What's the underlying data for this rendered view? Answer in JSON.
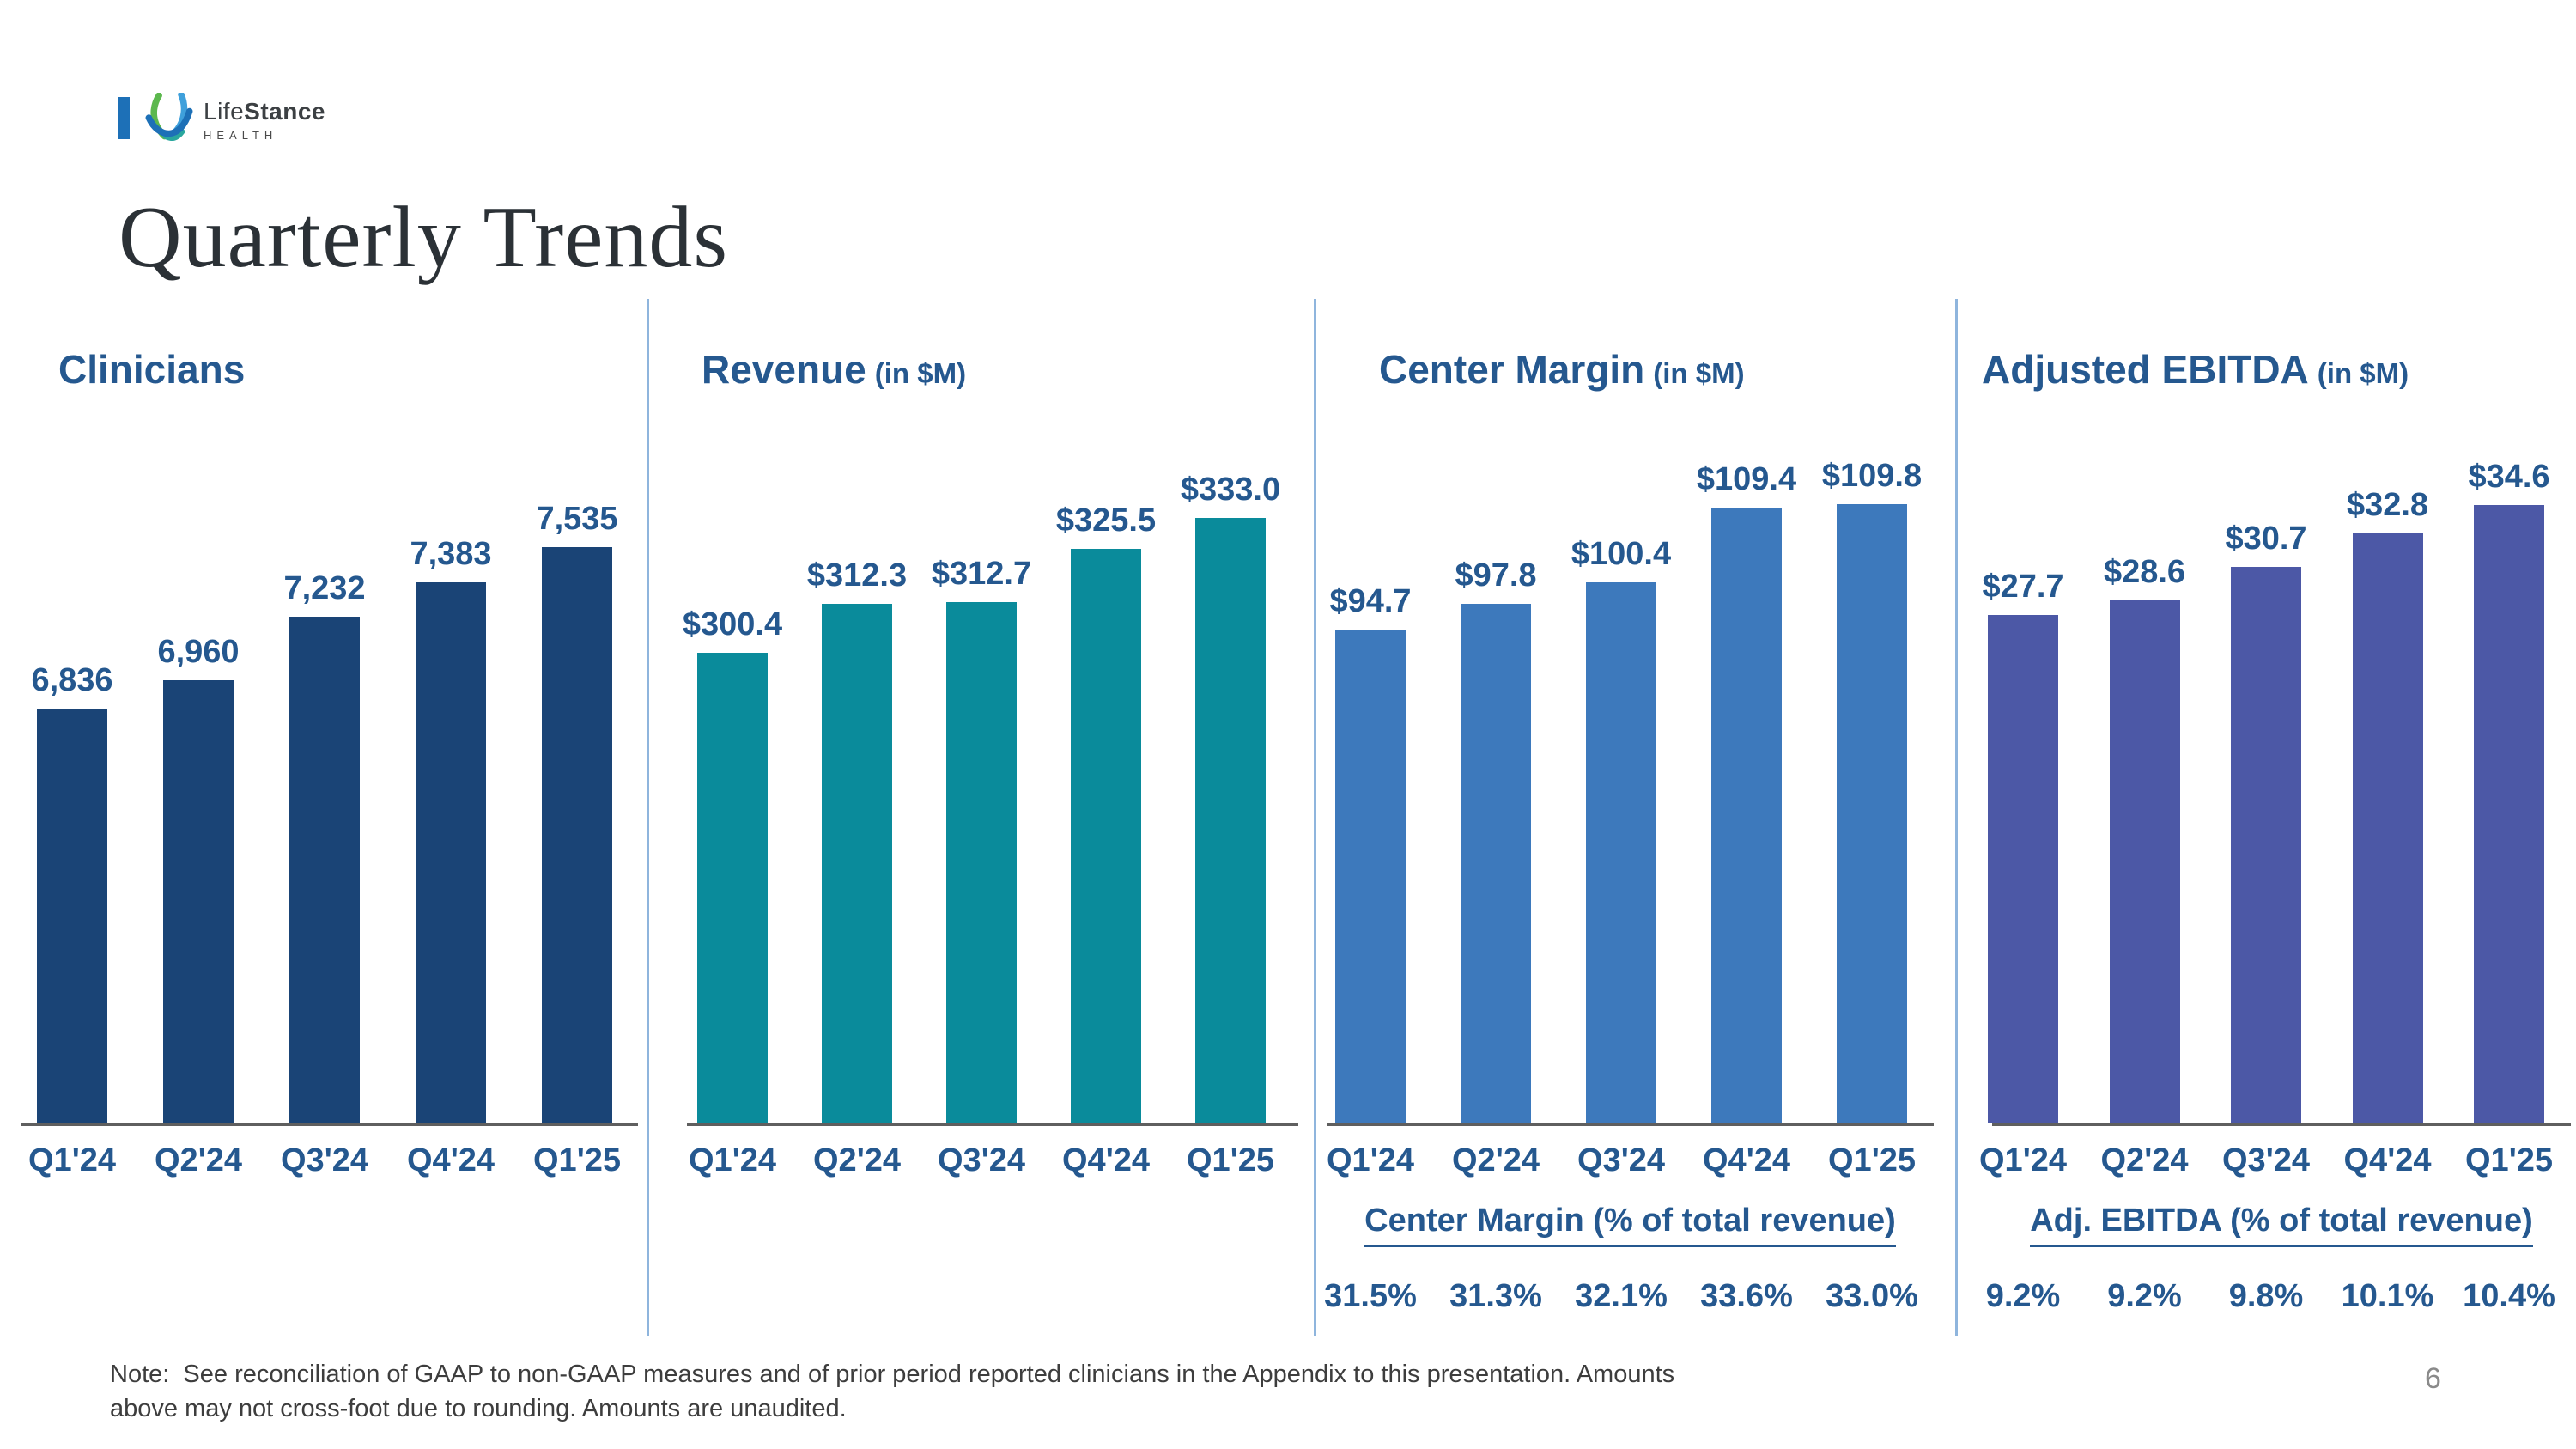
{
  "logo": {
    "brand_regular": "Life",
    "brand_bold": "Stance",
    "subtitle": "HEALTH"
  },
  "title": "Quarterly Trends",
  "page_number": "6",
  "note_lines": [
    "Note:  See reconciliation of GAAP to non-GAAP measures and of prior period reported clinicians in the Appendix to this presentation. Amounts",
    "above may not cross-foot due to rounding. Amounts are unaudited."
  ],
  "colors": {
    "clinicians_bar": "#1A4476",
    "revenue_bar": "#0A8B9B",
    "center_margin_bar": "#3D79BC",
    "ebitda_bar": "#4C58A6",
    "chart_text": "#25588F",
    "axis_line": "#5f5f5f",
    "divider": "#8FB5DD",
    "title_text": "#2B3136",
    "note_text": "#3D3D3D",
    "page_num": "#8a8a8a",
    "logo_green": "#5CB84E",
    "logo_light_blue": "#3FA0DB",
    "logo_dark_blue": "#1D70B7",
    "logo_teal": "#2AA79E"
  },
  "chart_data": [
    {
      "type": "bar",
      "title": "Clinicians",
      "subtitle": "",
      "categories": [
        "Q1'24",
        "Q2'24",
        "Q3'24",
        "Q4'24",
        "Q1'25"
      ],
      "values": [
        6836,
        6960,
        7232,
        7383,
        7535
      ],
      "value_labels": [
        "6,836",
        "6,960",
        "7,232",
        "7,383",
        "7,535"
      ],
      "bar_color": "#1A4476",
      "ylim": [
        5039,
        7717
      ],
      "xlabel": "",
      "ylabel": "",
      "grid": false,
      "legend": "none",
      "data_labels": true
    },
    {
      "type": "bar",
      "title": "Revenue",
      "subtitle": "(in $M)",
      "categories": [
        "Q1'24",
        "Q2'24",
        "Q3'24",
        "Q4'24",
        "Q1'25"
      ],
      "values": [
        300.4,
        312.3,
        312.7,
        325.5,
        333.0
      ],
      "value_labels": [
        "$300.4",
        "$312.3",
        "$312.7",
        "$325.5",
        "$333.0"
      ],
      "bar_color": "#0A8B9B",
      "ylim": [
        186.6,
        336.1
      ],
      "xlabel": "",
      "ylabel": "",
      "grid": false,
      "legend": "none",
      "data_labels": true
    },
    {
      "type": "bar",
      "title": "Center Margin",
      "subtitle": "(in $M)",
      "categories": [
        "Q1'24",
        "Q2'24",
        "Q3'24",
        "Q4'24",
        "Q1'25"
      ],
      "values": [
        94.7,
        97.8,
        100.4,
        109.4,
        109.8
      ],
      "value_labels": [
        "$94.7",
        "$97.8",
        "$100.4",
        "$109.4",
        "$109.8"
      ],
      "bar_color": "#3D79BC",
      "ylim": [
        35.2,
        109.7
      ],
      "xlabel": "",
      "ylabel": "",
      "grid": false,
      "legend": "none",
      "data_labels": true,
      "pct_row": {
        "heading": "Center Margin (% of total revenue)",
        "values": [
          "31.5%",
          "31.3%",
          "32.1%",
          "33.6%",
          "33.0%"
        ]
      }
    },
    {
      "type": "bar",
      "title": "Adjusted EBITDA",
      "subtitle": "(in $M)",
      "categories": [
        "Q1'24",
        "Q2'24",
        "Q3'24",
        "Q4'24",
        "Q1'25"
      ],
      "values": [
        27.7,
        28.6,
        30.7,
        32.8,
        34.6
      ],
      "value_labels": [
        "$27.7",
        "$28.6",
        "$30.7",
        "$32.8",
        "$34.6"
      ],
      "bar_color": "#4C58A6",
      "ylim": [
        -4.2,
        34.6
      ],
      "xlabel": "",
      "ylabel": "",
      "grid": false,
      "legend": "none",
      "data_labels": true,
      "pct_row": {
        "heading": "Adj. EBITDA (% of total revenue)",
        "values": [
          "9.2%",
          "9.2%",
          "9.8%",
          "10.1%",
          "10.4%"
        ]
      }
    }
  ]
}
